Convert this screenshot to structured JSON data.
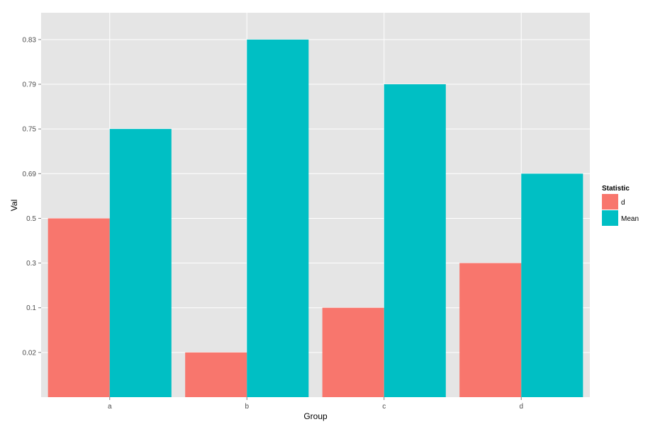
{
  "chart_data": {
    "type": "bar",
    "categories": [
      "a",
      "b",
      "c",
      "d"
    ],
    "series": [
      {
        "name": "d",
        "values": [
          "0.5",
          "0.02",
          "0.1",
          "0.3"
        ],
        "color": "#F8766D"
      },
      {
        "name": "Mean",
        "values": [
          "0.75",
          "0.83",
          "0.79",
          "0.69"
        ],
        "color": "#00BFC4"
      }
    ],
    "y_axis_ticks": [
      "0.02",
      "0.1",
      "0.3",
      "0.5",
      "0.69",
      "0.75",
      "0.79",
      "0.83"
    ],
    "y_scale": "categorical (discrete values as factor levels)",
    "xlabel": "Group",
    "ylabel": "Val",
    "legend": {
      "title": "Statistic",
      "placement": "right"
    },
    "grid": true,
    "panel_background": "#E5E5E5"
  }
}
